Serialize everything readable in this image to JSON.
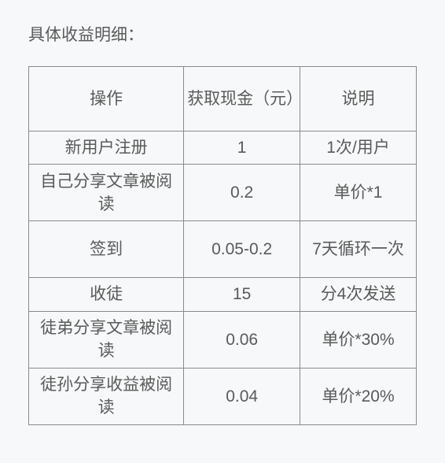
{
  "title": "具体收益明细：",
  "table": {
    "columns": [
      "操作",
      "获取现金（元）",
      "说明"
    ],
    "column_widths_pct": [
      40,
      30,
      30
    ],
    "rows": [
      {
        "op": "新用户注册",
        "amount": "1",
        "note": "1次/用户",
        "tall": false
      },
      {
        "op": "自己分享文章被阅读",
        "amount": "0.2",
        "note": "单价*1",
        "tall": true
      },
      {
        "op": "签到",
        "amount": "0.05-0.2",
        "note": "7天循环一次",
        "tall": true
      },
      {
        "op": "收徒",
        "amount": "15",
        "note": "分4次发送",
        "tall": false
      },
      {
        "op": "徒弟分享文章被阅读",
        "amount": "0.06",
        "note": "单价*30%",
        "tall": true
      },
      {
        "op": "徒孙分享收益被阅读",
        "amount": "0.04",
        "note": "单价*20%",
        "tall": true
      }
    ],
    "border_color": "#8a8a8a",
    "text_color": "#5a5a5a",
    "background_color": "#f7f8fa",
    "font_size_pt": 16,
    "header_font_size_pt": 16
  }
}
